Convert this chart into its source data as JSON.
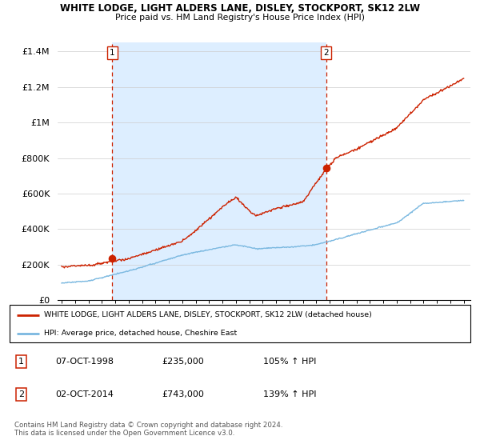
{
  "title": "WHITE LODGE, LIGHT ALDERS LANE, DISLEY, STOCKPORT, SK12 2LW",
  "subtitle": "Price paid vs. HM Land Registry's House Price Index (HPI)",
  "legend_line1": "WHITE LODGE, LIGHT ALDERS LANE, DISLEY, STOCKPORT, SK12 2LW (detached house)",
  "legend_line2": "HPI: Average price, detached house, Cheshire East",
  "footnote": "Contains HM Land Registry data © Crown copyright and database right 2024.\nThis data is licensed under the Open Government Licence v3.0.",
  "marker1": {
    "label": "1",
    "date": "07-OCT-1998",
    "price": 235000,
    "pct": "105% ↑ HPI"
  },
  "marker2": {
    "label": "2",
    "date": "02-OCT-2014",
    "price": 743000,
    "pct": "139% ↑ HPI"
  },
  "hpi_color": "#7ab8e0",
  "price_color": "#cc2200",
  "marker_color": "#cc2200",
  "shade_color": "#ddeeff",
  "ylim": [
    0,
    1450000
  ],
  "yticks": [
    0,
    200000,
    400000,
    600000,
    800000,
    1000000,
    1200000,
    1400000
  ],
  "ytick_labels": [
    "£0",
    "£200K",
    "£400K",
    "£600K",
    "£800K",
    "£1M",
    "£1.2M",
    "£1.4M"
  ],
  "xlim_start": 1994.7,
  "xlim_end": 2025.5,
  "marker1_x": 1998.77,
  "marker2_x": 2014.75
}
